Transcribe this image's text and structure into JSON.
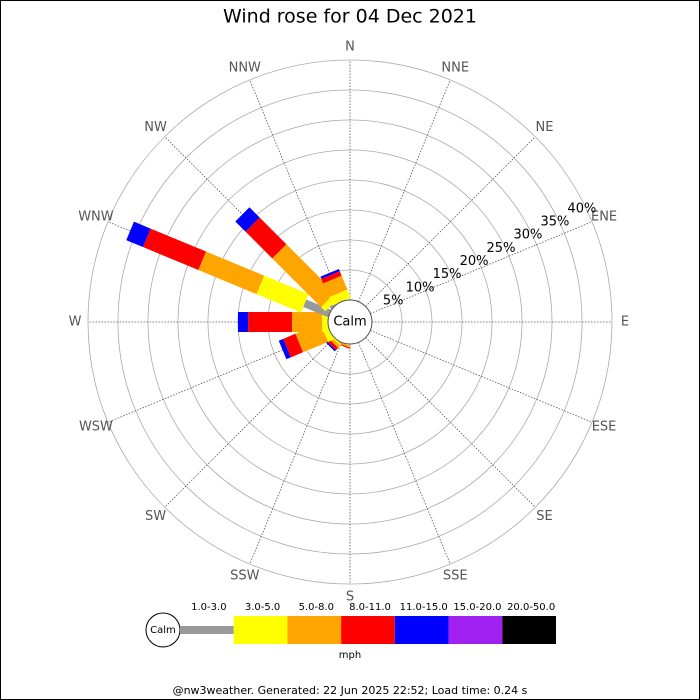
{
  "chart_data": {
    "type": "windrose",
    "title": "Wind rose for 04 Dec 2021",
    "categories": [
      "N",
      "NNE",
      "NE",
      "ENE",
      "E",
      "ESE",
      "SE",
      "SSE",
      "S",
      "SSW",
      "SW",
      "WSW",
      "W",
      "WNW",
      "NW",
      "NNW"
    ],
    "series": [
      {
        "name": "1.0-3.0",
        "color": "#999999",
        "values": [
          0,
          0,
          0,
          0,
          0,
          0,
          0,
          0,
          0,
          0,
          0,
          0,
          0,
          4.5,
          0.5,
          0
        ]
      },
      {
        "name": "3.0-5.0",
        "color": "#ffff00",
        "values": [
          0,
          0,
          0,
          0,
          0,
          0,
          0,
          0,
          0,
          0,
          0.3,
          1,
          1,
          8,
          1,
          1.5
        ]
      },
      {
        "name": "5.0-8.0",
        "color": "#ffa500",
        "values": [
          0,
          0,
          0,
          0,
          0,
          0,
          0,
          0,
          0,
          0.3,
          0.5,
          4.5,
          5,
          10.5,
          11.5,
          2.5
        ]
      },
      {
        "name": "8.0-11.0",
        "color": "#ff0000",
        "values": [
          0,
          0,
          0,
          0,
          0,
          0,
          0,
          0,
          0,
          0.2,
          0.5,
          2.2,
          7.3,
          10,
          6.3,
          0.8
        ]
      },
      {
        "name": "11.0-15.0",
        "color": "#0000ff",
        "values": [
          0,
          0,
          0,
          0,
          0,
          0,
          0,
          0,
          0,
          0,
          0.3,
          0.8,
          1.7,
          3,
          2.4,
          0.4
        ]
      },
      {
        "name": "15.0-20.0",
        "color": "#a020f0",
        "values": [
          0,
          0,
          0,
          0,
          0,
          0,
          0,
          0,
          0,
          0,
          0,
          0,
          0,
          0,
          0,
          0
        ]
      },
      {
        "name": "20.0-50.0",
        "color": "#000000",
        "values": [
          0,
          0,
          0,
          0,
          0,
          0,
          0,
          0,
          0,
          0,
          0,
          0,
          0,
          0,
          0,
          0
        ]
      }
    ],
    "rlim": [
      0,
      40
    ],
    "rticks": [
      {
        "value": 5,
        "label": "5%"
      },
      {
        "value": 10,
        "label": "10%"
      },
      {
        "value": 15,
        "label": "15%"
      },
      {
        "value": 20,
        "label": "20%"
      },
      {
        "value": 25,
        "label": "25%"
      },
      {
        "value": 30,
        "label": "30%"
      },
      {
        "value": 35,
        "label": "35%"
      },
      {
        "value": 40,
        "label": "40%"
      }
    ],
    "calm_label": "Calm",
    "legend_title": "mph",
    "footer": "@nw3weather.  Generated: 22 Jun 2025 22:52; Load time: 0.24 s"
  }
}
